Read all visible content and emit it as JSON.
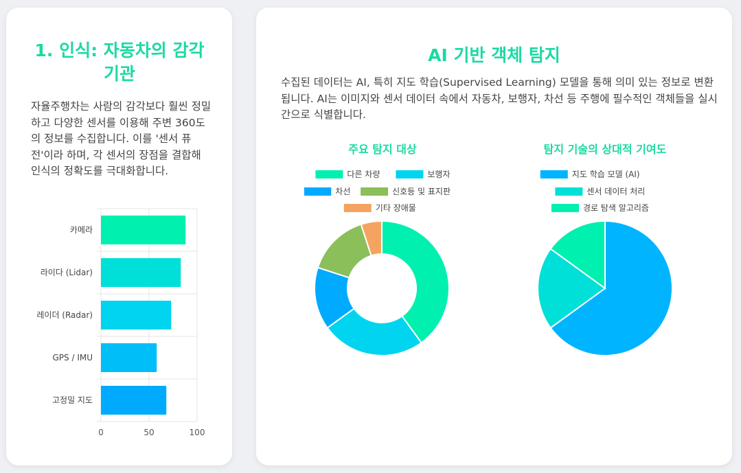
{
  "left": {
    "title": "1. 인식: 자동차의 감각 기관",
    "description": "자율주행차는 사람의 감각보다 훨씬 정밀하고 다양한 센서를 이용해 주변 360도의 정보를 수집합니다. 이를 '센서 퓨전'이라 하며, 각 센서의 장점을 결합해 인식의 정확도를 극대화합니다."
  },
  "right": {
    "title": "AI 기반 객체 탐지",
    "description": "수집된 데이터는 AI, 특히 지도 학습(Supervised Learning) 모델을 통해 의미 있는 정보로 변환됩니다. AI는 이미지와 센서 데이터 속에서 자동차, 보행자, 차선 등 주행에 필수적인 객체들을 실시간으로 식별합니다."
  },
  "chart_data": [
    {
      "type": "bar",
      "orientation": "horizontal",
      "categories": [
        "카메라",
        "라이다 (Lidar)",
        "레이더 (Radar)",
        "GPS / IMU",
        "고정밀 지도"
      ],
      "values": [
        88,
        83,
        73,
        58,
        68
      ],
      "xlim": [
        0,
        100
      ],
      "xticks": [
        0,
        50,
        100
      ],
      "colors": [
        "#00f0b0",
        "#00e0d8",
        "#00d4ef",
        "#00bff8",
        "#00aaff"
      ],
      "grid": true
    },
    {
      "type": "pie",
      "variant": "donut",
      "title": "주요 탐지 대상",
      "categories": [
        "다른 차량",
        "보행자",
        "차선",
        "신호등 및 표지판",
        "기타 장애물"
      ],
      "values": [
        40,
        25,
        15,
        15,
        5
      ],
      "colors": [
        "#00f0b0",
        "#00d4ef",
        "#00aaff",
        "#8bbf5a",
        "#f4a460"
      ],
      "legend": "top"
    },
    {
      "type": "pie",
      "title": "탐지 기술의 상대적 기여도",
      "categories": [
        "지도 학습 모델 (AI)",
        "센서 데이터 처리",
        "경로 탐색 알고리즘"
      ],
      "values": [
        65,
        20,
        15
      ],
      "colors": [
        "#00b4ff",
        "#00e0d8",
        "#00f0b0"
      ],
      "legend": "top"
    }
  ]
}
